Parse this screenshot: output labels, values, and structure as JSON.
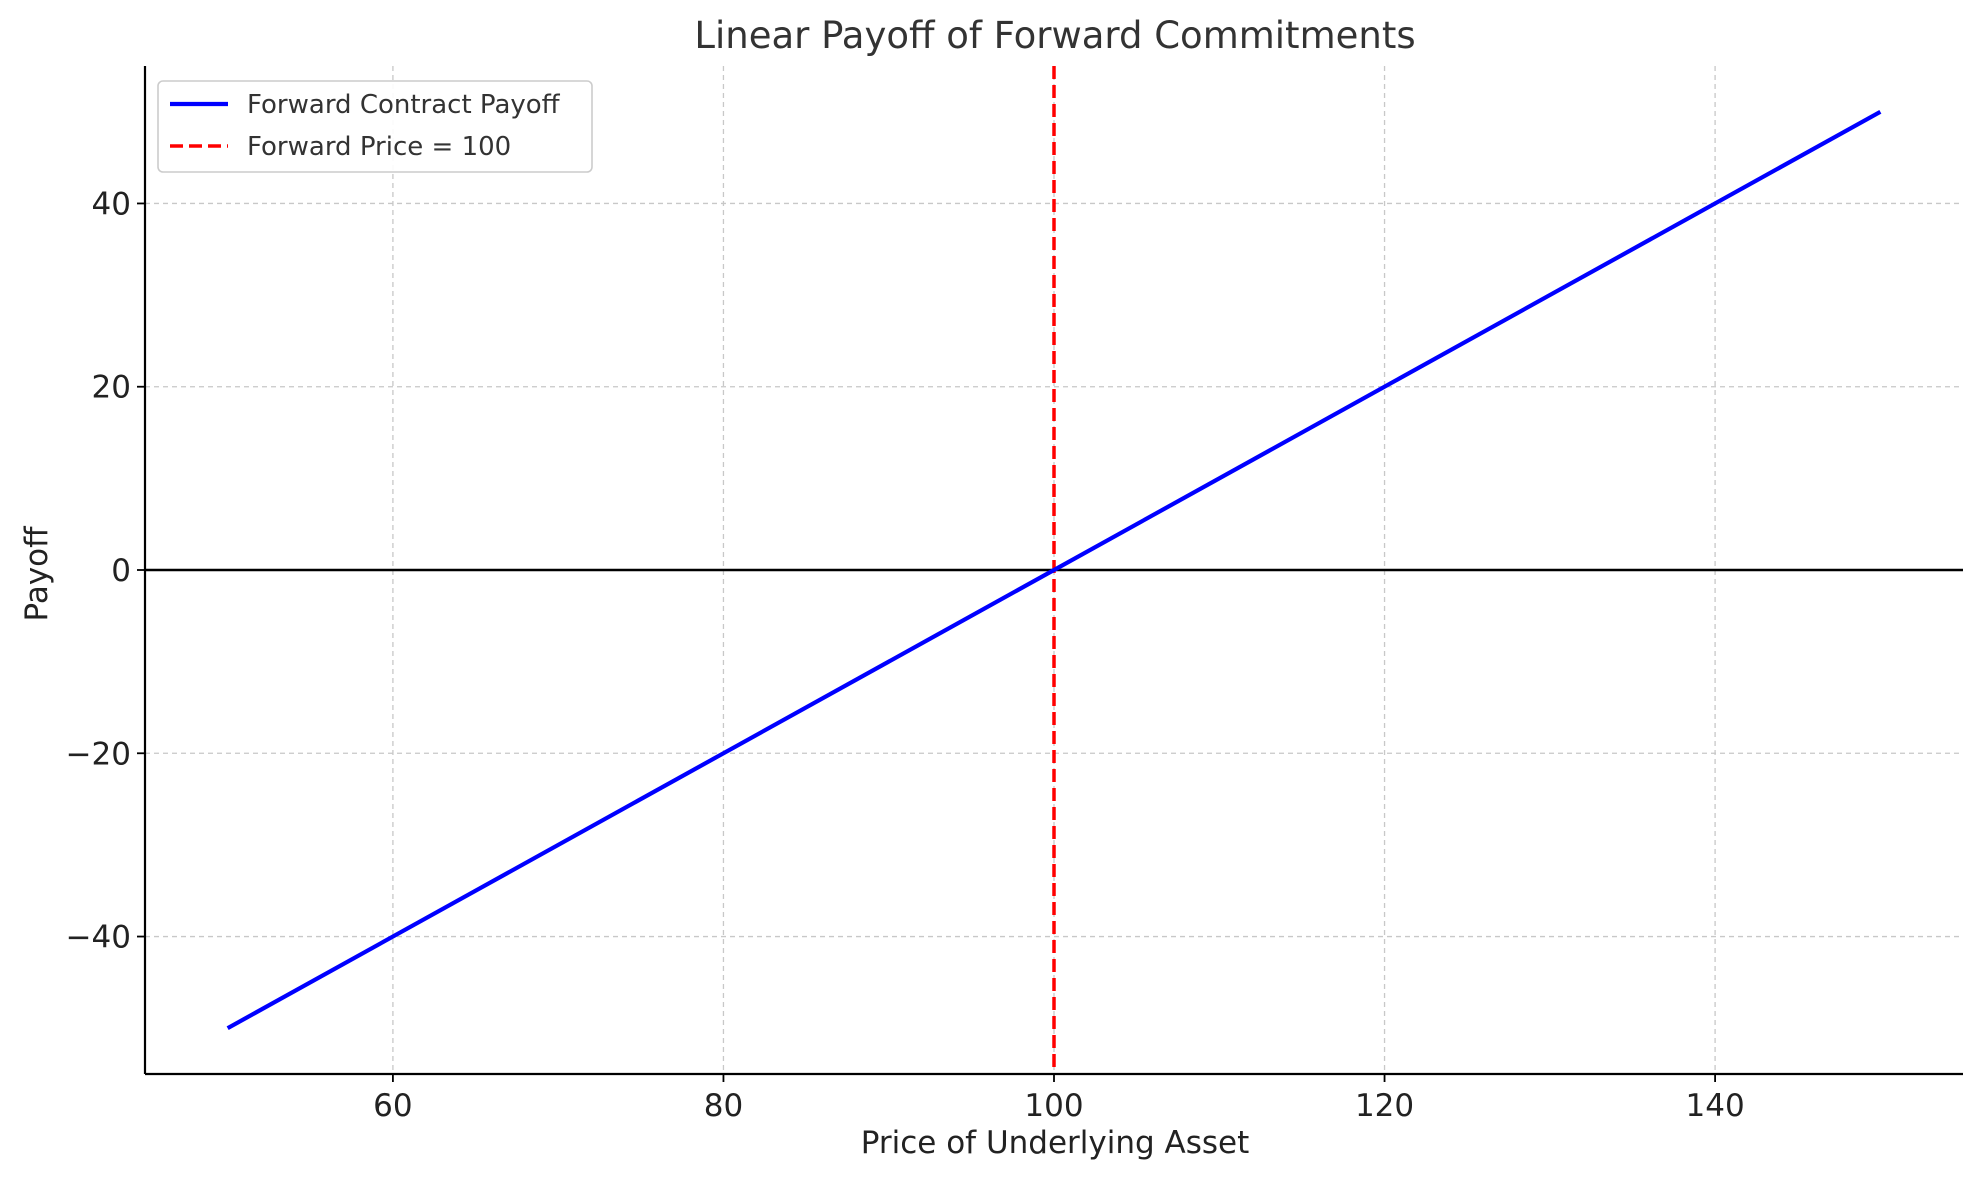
{
  "chart_data": {
    "type": "line",
    "title": "Linear Payoff of Forward Commitments",
    "xlabel": "Price of Underlying Asset",
    "ylabel": "Payoff",
    "xlim": [
      45,
      155
    ],
    "ylim": [
      -55,
      55
    ],
    "xticks": [
      60,
      80,
      100,
      120,
      140
    ],
    "xtick_labels": [
      "60",
      "80",
      "100",
      "120",
      "140"
    ],
    "yticks": [
      -40,
      -20,
      0,
      20,
      40
    ],
    "ytick_labels": [
      "−40",
      "−20",
      "0",
      "20",
      "40"
    ],
    "grid": true,
    "legend_position": "top-left",
    "series": [
      {
        "name": "Forward Contract Payoff",
        "style": "solid",
        "color": "#0000ff",
        "x": [
          50,
          150
        ],
        "y": [
          -50,
          50
        ]
      }
    ],
    "vlines": [
      {
        "name": "Forward Price = 100",
        "style": "dashed",
        "color": "#ff0000",
        "x": 100
      }
    ],
    "hlines": [
      {
        "style": "solid",
        "color": "#000000",
        "y": 0
      }
    ]
  }
}
